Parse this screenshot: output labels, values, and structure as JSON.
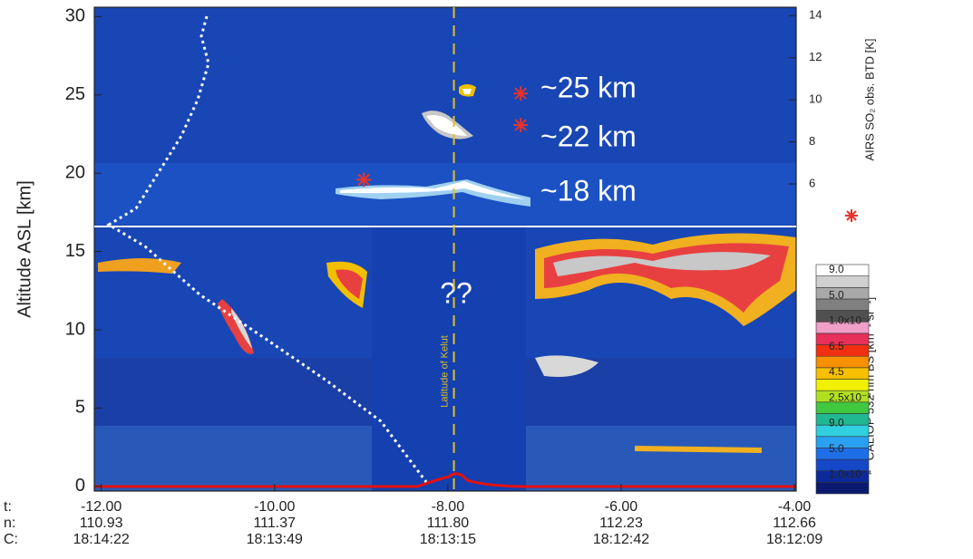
{
  "chart_data": {
    "type": "curtain",
    "ylabel": "Altitude ASL [km]",
    "y2label": "AIRS SO₂ obs. BTD [K]",
    "xlim": [
      -12.08,
      -3.98
    ],
    "xticks": [
      {
        "value": -12,
        "label": "-12.00"
      },
      {
        "value": -10,
        "label": "-10.00"
      },
      {
        "value": -8,
        "label": "-8.00"
      },
      {
        "value": -6,
        "label": "-6.00"
      },
      {
        "value": -4,
        "label": "-4.00"
      }
    ],
    "xtick_rows": [
      "t:",
      "n:",
      "C:"
    ],
    "xtick_lon": [
      "110.93",
      "111.37",
      "111.80",
      "112.23",
      "112.66"
    ],
    "xtick_time": [
      "18:14:22",
      "18:13:49",
      "18:13:15",
      "18:12:42",
      "18:12:09"
    ],
    "ylim": [
      -0.3,
      30.6
    ],
    "yticks": [
      0,
      5,
      10,
      15,
      20,
      25,
      30
    ],
    "y2lim": [
      -8.6,
      14.4
    ],
    "y2ticks": [
      6,
      8,
      10,
      12,
      14
    ],
    "hline": 16.6,
    "vline": -7.93,
    "vline_label": "Latitude of Kelut",
    "series": [
      {
        "axis": "y2",
        "color": "#e8322a",
        "x": [
          -8.97,
          -7.16,
          -7.16
        ],
        "values": [
          6.2,
          10.3,
          8.8
        ]
      }
    ],
    "annotations": [
      "~25 km",
      "~22 km",
      "~18 km",
      "??"
    ],
    "colorbar": {
      "label": "CALIOP 532 nm BS [km⁻¹ sr⁻¹]",
      "labels": [
        "1.0x10⁻⁴",
        "5.0",
        "9.0",
        "2.5x10⁻³",
        "4.5",
        "6.5",
        "1.0x10⁻²",
        "5.0",
        "9.0"
      ],
      "colors": [
        "#0a1a6e",
        "#0c2a9a",
        "#1448c8",
        "#1e6ee8",
        "#2aa0f0",
        "#30d0e0",
        "#20b890",
        "#40c840",
        "#b0e020",
        "#f0f000",
        "#f8c000",
        "#f89000",
        "#f03010",
        "#e8305a",
        "#f0a0c8",
        "#505050",
        "#808080",
        "#a8a8a8",
        "#d0d0d0",
        "#ffffff"
      ]
    }
  }
}
